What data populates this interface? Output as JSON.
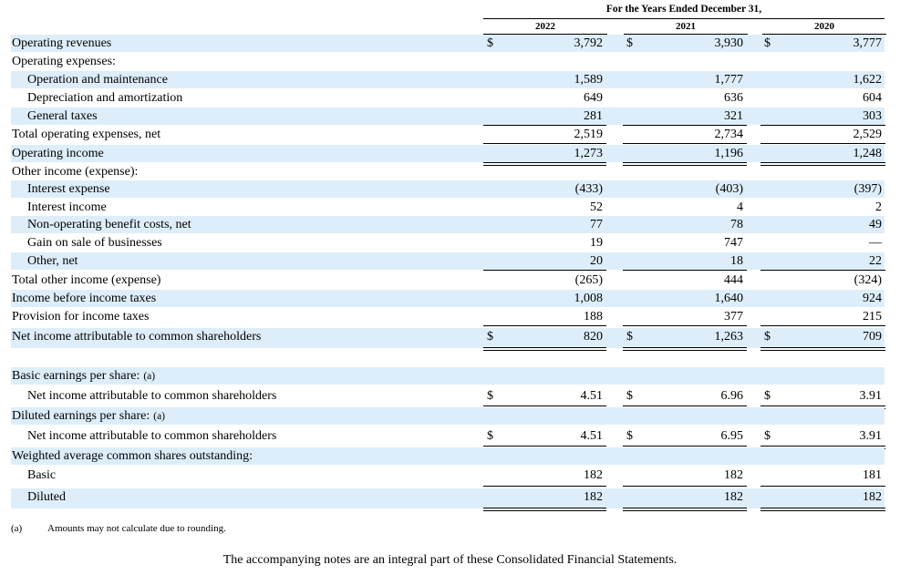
{
  "header": {
    "span_title": "For the Years Ended December 31,",
    "years": [
      "2022",
      "2021",
      "2020"
    ]
  },
  "currency_symbol": "$",
  "rows": [
    {
      "label": "Operating revenues",
      "values": [
        "3,792",
        "3,930",
        "3,777"
      ],
      "indent": 0,
      "shaded": true,
      "dollar": true
    },
    {
      "label": "Operating expenses:",
      "values": [
        "",
        "",
        ""
      ],
      "indent": 0,
      "shaded": false
    },
    {
      "label": "Operation and maintenance",
      "values": [
        "1,589",
        "1,777",
        "1,622"
      ],
      "indent": 1,
      "shaded": true
    },
    {
      "label": "Depreciation and amortization",
      "values": [
        "649",
        "636",
        "604"
      ],
      "indent": 1,
      "shaded": false
    },
    {
      "label": "General taxes",
      "values": [
        "281",
        "321",
        "303"
      ],
      "indent": 1,
      "shaded": true
    },
    {
      "label": "Total operating expenses, net",
      "values": [
        "2,519",
        "2,734",
        "2,529"
      ],
      "indent": 0,
      "shaded": false
    },
    {
      "label": "Operating income",
      "values": [
        "1,273",
        "1,196",
        "1,248"
      ],
      "indent": 0,
      "shaded": true
    },
    {
      "label": "Other income (expense):",
      "values": [
        "",
        "",
        ""
      ],
      "indent": 0,
      "shaded": false
    },
    {
      "label": "Interest expense",
      "values": [
        "(433)",
        "(403)",
        "(397)"
      ],
      "indent": 1,
      "shaded": true
    },
    {
      "label": "Interest income",
      "values": [
        "52",
        "4",
        "2"
      ],
      "indent": 1,
      "shaded": false
    },
    {
      "label": "Non-operating benefit costs, net",
      "values": [
        "77",
        "78",
        "49"
      ],
      "indent": 1,
      "shaded": true
    },
    {
      "label": "Gain on sale of businesses",
      "values": [
        "19",
        "747",
        "—"
      ],
      "indent": 1,
      "shaded": false
    },
    {
      "label": "Other, net",
      "values": [
        "20",
        "18",
        "22"
      ],
      "indent": 1,
      "shaded": true
    },
    {
      "label": "Total other income (expense)",
      "values": [
        "(265)",
        "444",
        "(324)"
      ],
      "indent": 0,
      "shaded": false
    },
    {
      "label": "Income before income taxes",
      "values": [
        "1,008",
        "1,640",
        "924"
      ],
      "indent": 0,
      "shaded": true
    },
    {
      "label": "Provision for income taxes",
      "values": [
        "188",
        "377",
        "215"
      ],
      "indent": 0,
      "shaded": false
    },
    {
      "label": "Net income attributable to common shareholders",
      "values": [
        "820",
        "1,263",
        "709"
      ],
      "indent": 0,
      "shaded": true,
      "dollar": true
    },
    {
      "label": "Basic earnings per share:",
      "note": "(a)",
      "values": [
        "",
        "",
        ""
      ],
      "indent": 0,
      "shaded": true
    },
    {
      "label": "Net income attributable to common shareholders",
      "values": [
        "4.51",
        "6.96",
        "3.91"
      ],
      "indent": 1,
      "shaded": false,
      "dollar": true
    },
    {
      "label": "Diluted earnings per share:",
      "note": "(a)",
      "values": [
        "",
        "",
        ""
      ],
      "indent": 0,
      "shaded": true
    },
    {
      "label": "Net income attributable to common shareholders",
      "values": [
        "4.51",
        "6.95",
        "3.91"
      ],
      "indent": 1,
      "shaded": false,
      "dollar": true
    },
    {
      "label": "Weighted average common shares outstanding:",
      "values": [
        "",
        "",
        ""
      ],
      "indent": 0,
      "shaded": true
    },
    {
      "label": "Basic",
      "values": [
        "182",
        "182",
        "181"
      ],
      "indent": 1,
      "shaded": false
    },
    {
      "label": "Diluted",
      "values": [
        "182",
        "182",
        "182"
      ],
      "indent": 1,
      "shaded": true
    }
  ],
  "footnote": {
    "mark": "(a)",
    "text": "Amounts may not calculate due to rounding."
  },
  "closing_note": "The accompanying notes are an integral part of these Consolidated Financial Statements."
}
